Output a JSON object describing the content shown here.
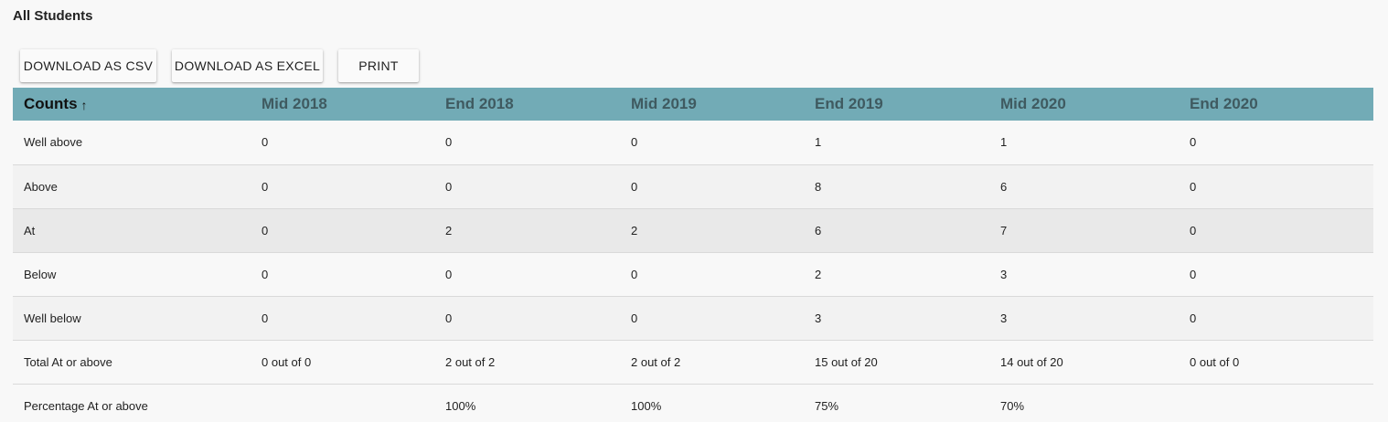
{
  "title": "All Students",
  "toolbar": {
    "csv_label": "DOWNLOAD AS CSV",
    "excel_label": "DOWNLOAD AS EXCEL",
    "print_label": "PRINT"
  },
  "table": {
    "header": {
      "first_label": "Counts",
      "sort_icon": "↑",
      "columns": [
        "Mid 2018",
        "End 2018",
        "Mid 2019",
        "End 2019",
        "Mid 2020",
        "End 2020"
      ]
    },
    "header_bg": "#72abb6",
    "rows": [
      {
        "label": "Well above",
        "cells": [
          "0",
          "0",
          "0",
          "1",
          "1",
          "0"
        ]
      },
      {
        "label": "Above",
        "cells": [
          "0",
          "0",
          "0",
          "8",
          "6",
          "0"
        ]
      },
      {
        "label": "At",
        "cells": [
          "0",
          "2",
          "2",
          "6",
          "7",
          "0"
        ]
      },
      {
        "label": "Below",
        "cells": [
          "0",
          "0",
          "0",
          "2",
          "3",
          "0"
        ]
      },
      {
        "label": "Well below",
        "cells": [
          "0",
          "0",
          "0",
          "3",
          "3",
          "0"
        ]
      },
      {
        "label": "Total At or above",
        "cells": [
          "0 out of 0",
          "2 out of 2",
          "2 out of 2",
          "15 out of 20",
          "14 out of 20",
          "0 out of 0"
        ]
      },
      {
        "label": "Percentage At or above",
        "cells": [
          "",
          "100%",
          "100%",
          "75%",
          "70%",
          ""
        ]
      }
    ]
  }
}
